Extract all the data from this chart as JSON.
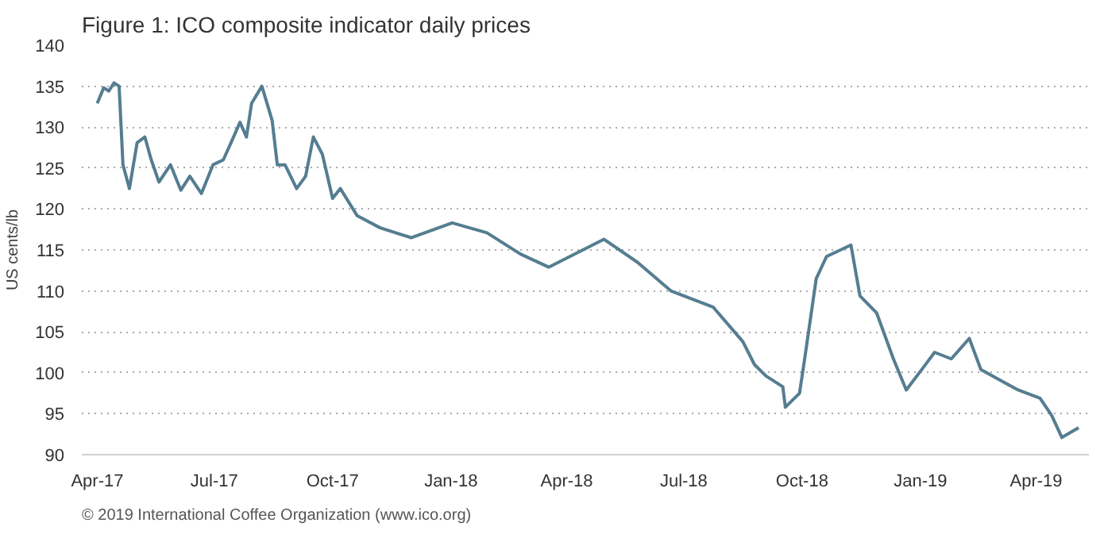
{
  "chart_data": {
    "type": "line",
    "title": "Figure 1: ICO composite indicator daily prices",
    "ylabel": "US cents/lb",
    "annotations": [
      "© 2019 International Coffee Organization (www.ico.org)"
    ],
    "x": [
      "2017-04-01",
      "2017-04-06",
      "2017-04-10",
      "2017-04-14",
      "2017-04-18",
      "2017-04-21",
      "2017-04-26",
      "2017-05-02",
      "2017-05-08",
      "2017-05-13",
      "2017-05-19",
      "2017-05-28",
      "2017-06-05",
      "2017-06-12",
      "2017-06-21",
      "2017-06-30",
      "2017-07-08",
      "2017-07-14",
      "2017-07-21",
      "2017-07-26",
      "2017-07-30",
      "2017-08-07",
      "2017-08-15",
      "2017-08-19",
      "2017-08-25",
      "2017-09-03",
      "2017-09-10",
      "2017-09-16",
      "2017-09-23",
      "2017-10-01",
      "2017-10-07",
      "2017-10-20",
      "2017-11-07",
      "2017-12-01",
      "2018-01-02",
      "2018-01-29",
      "2018-02-24",
      "2018-03-18",
      "2018-04-30",
      "2018-05-26",
      "2018-06-21",
      "2018-07-24",
      "2018-08-16",
      "2018-08-25",
      "2018-09-03",
      "2018-09-16",
      "2018-09-18",
      "2018-09-29",
      "2018-10-03",
      "2018-10-12",
      "2018-10-20",
      "2018-11-08",
      "2018-11-15",
      "2018-11-28",
      "2018-12-11",
      "2018-12-21",
      "2019-01-03",
      "2019-01-12",
      "2019-01-25",
      "2019-02-08",
      "2019-02-17",
      "2019-03-05",
      "2019-03-18",
      "2019-04-04",
      "2019-04-13",
      "2019-04-21",
      "2019-05-04"
    ],
    "series": [
      {
        "color": "#557d91",
        "values": [
          132.9,
          134.8,
          134.4,
          135.4,
          135,
          125.4,
          122.5,
          128.1,
          128.8,
          126,
          123.3,
          125.4,
          122.3,
          124,
          121.9,
          125.4,
          126,
          128.1,
          130.6,
          128.8,
          132.9,
          135,
          130.8,
          125.4,
          125.4,
          122.5,
          124,
          128.8,
          126.7,
          121.3,
          122.5,
          119.2,
          117.7,
          116.5,
          118.3,
          117.1,
          114.5,
          112.9,
          116.3,
          113.5,
          110,
          108,
          103.8,
          101,
          99.6,
          98.3,
          95.8,
          97.5,
          101.7,
          111.5,
          114.2,
          115.6,
          109.4,
          107.3,
          101.7,
          97.9,
          100.6,
          102.5,
          101.7,
          104.2,
          100.4,
          99,
          97.9,
          96.9,
          94.8,
          92.1,
          93.3
        ]
      }
    ],
    "xlim": [
      "2017-03-20",
      "2019-05-12"
    ],
    "xticks": [
      {
        "value": "2017-04-01",
        "label": "Apr-17"
      },
      {
        "value": "2017-07-01",
        "label": "Jul-17"
      },
      {
        "value": "2017-10-01",
        "label": "Oct-17"
      },
      {
        "value": "2018-01-01",
        "label": "Jan-18"
      },
      {
        "value": "2018-04-01",
        "label": "Apr-18"
      },
      {
        "value": "2018-07-01",
        "label": "Jul-18"
      },
      {
        "value": "2018-10-01",
        "label": "Oct-18"
      },
      {
        "value": "2019-01-01",
        "label": "Jan-19"
      },
      {
        "value": "2019-04-01",
        "label": "Apr-19"
      }
    ],
    "ylim": [
      90,
      140
    ],
    "yticks": [
      90,
      95,
      100,
      105,
      110,
      115,
      120,
      125,
      130,
      135,
      140
    ],
    "grid": "y",
    "marker": "none",
    "line_style": "solid"
  }
}
